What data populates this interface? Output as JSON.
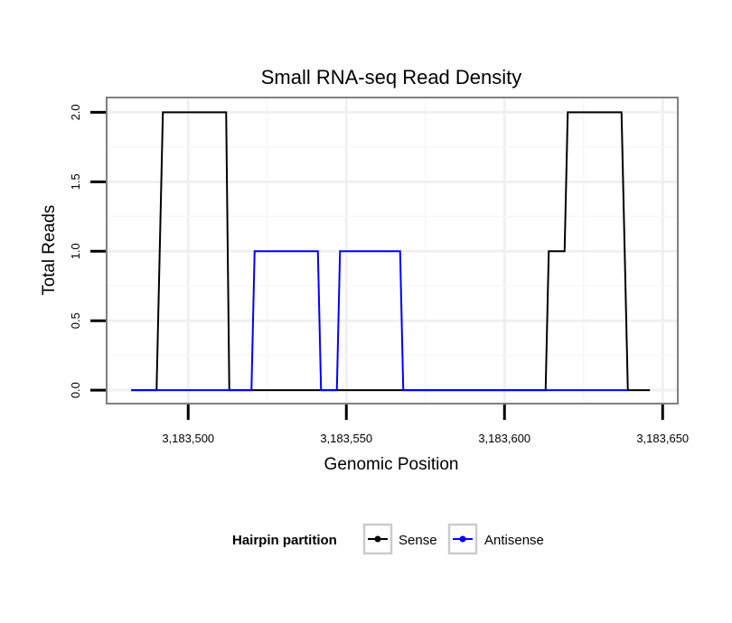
{
  "chart_data": {
    "type": "line",
    "title": "Small RNA-seq Read Density",
    "xlabel": "Genomic Position",
    "ylabel": "Total Reads",
    "xlim": [
      3183474.5,
      3183654.5
    ],
    "ylim": [
      -0.09,
      2.1
    ],
    "x_ticks": [
      3183500,
      3183550,
      3183600,
      3183650
    ],
    "x_tick_labels": [
      "3,183,500",
      "3,183,550",
      "3,183,600",
      "3,183,650"
    ],
    "y_ticks": [
      0.0,
      0.5,
      1.0,
      1.5,
      2.0
    ],
    "y_tick_labels": [
      "0.0",
      "0.5",
      "1.0",
      "1.5",
      "2.0"
    ],
    "grid": true,
    "legend": {
      "title": "Hairpin partition",
      "position": "bottom"
    },
    "series": [
      {
        "name": "Sense",
        "color": "#000000",
        "x": [
          3183482,
          3183490,
          3183492,
          3183512,
          3183513,
          3183613,
          3183614,
          3183619,
          3183620,
          3183637,
          3183638,
          3183639,
          3183646
        ],
        "y": [
          0,
          0,
          2,
          2,
          0,
          0,
          1,
          1,
          2,
          2,
          1,
          0,
          0
        ]
      },
      {
        "name": "Antisense",
        "color": "#0000ff",
        "x": [
          3183482,
          3183520,
          3183521,
          3183541,
          3183542,
          3183547,
          3183548,
          3183567,
          3183568,
          3183639
        ],
        "y": [
          0,
          0,
          1,
          1,
          0,
          0,
          1,
          1,
          0,
          0
        ]
      }
    ]
  }
}
